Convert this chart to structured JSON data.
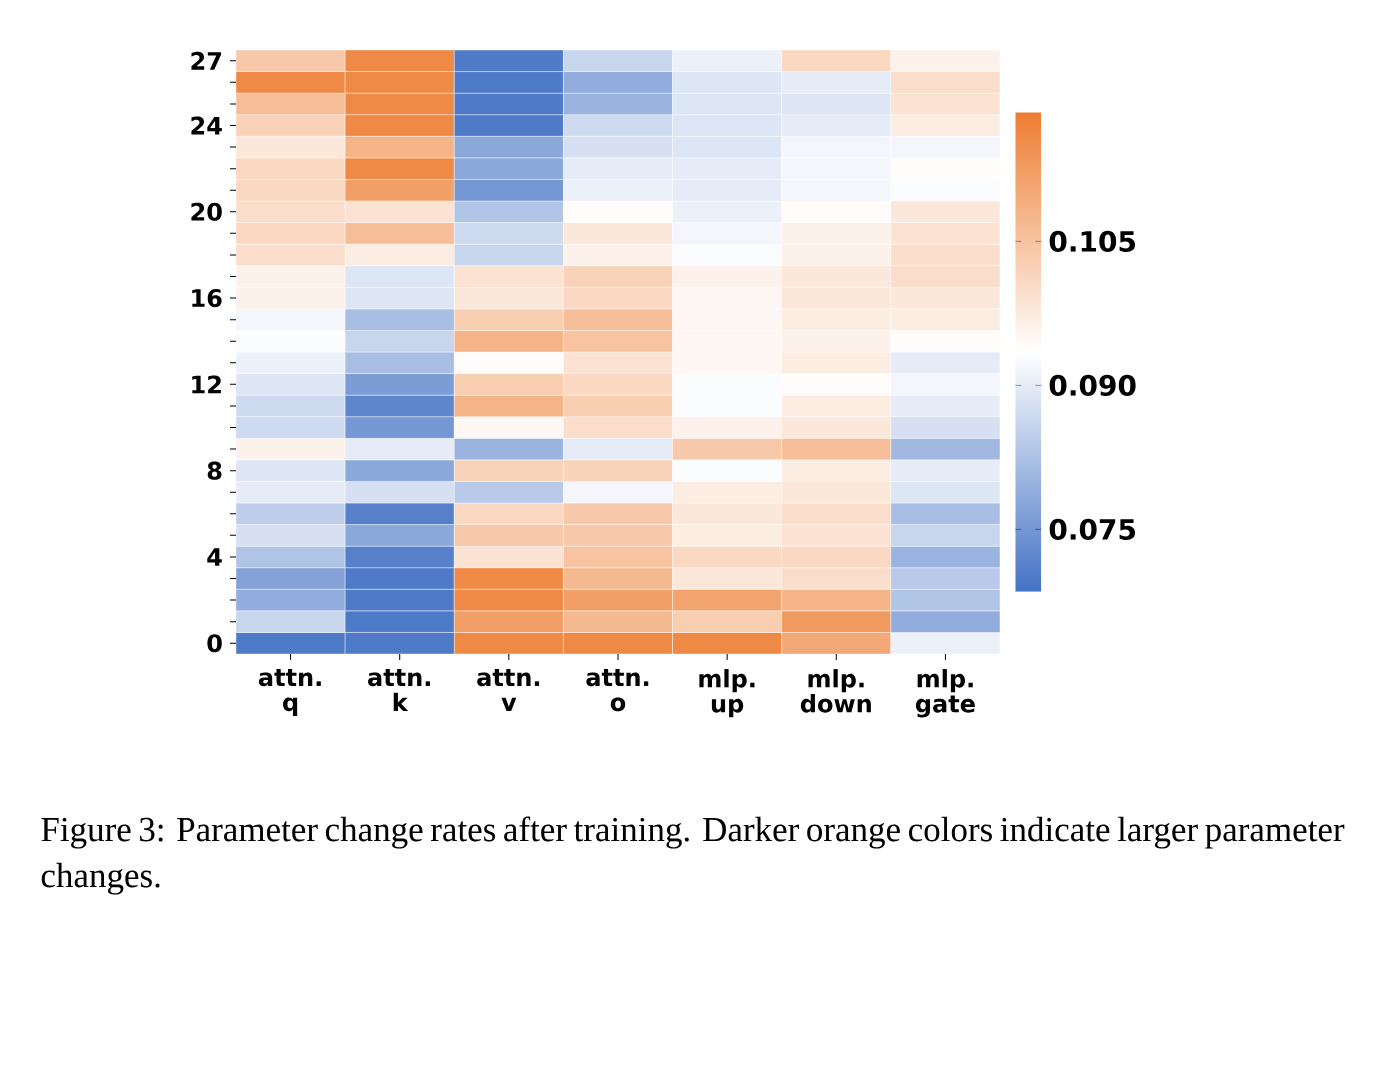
{
  "chart_data": {
    "type": "heatmap",
    "categories": [
      "attn. q",
      "attn. k",
      "attn. v",
      "attn. o",
      "mlp. up",
      "mlp. down",
      "mlp. gate"
    ],
    "y_categories": [
      "27",
      null,
      null,
      "24",
      null,
      null,
      null,
      "20",
      null,
      null,
      null,
      "16",
      null,
      null,
      null,
      "12",
      null,
      null,
      null,
      "8",
      null,
      null,
      null,
      "4",
      null,
      null,
      null,
      "0"
    ],
    "cells": [
      [
        0.104,
        0.116,
        0.07,
        0.086,
        0.091,
        0.101,
        0.096
      ],
      [
        0.116,
        0.116,
        0.07,
        0.079,
        0.089,
        0.09,
        0.1
      ],
      [
        0.106,
        0.116,
        0.07,
        0.08,
        0.089,
        0.089,
        0.099
      ],
      [
        0.102,
        0.116,
        0.07,
        0.087,
        0.089,
        0.09,
        0.097
      ],
      [
        0.098,
        0.108,
        0.078,
        0.088,
        0.089,
        0.092,
        0.092
      ],
      [
        0.101,
        0.116,
        0.078,
        0.09,
        0.09,
        0.092,
        0.094
      ],
      [
        0.101,
        0.112,
        0.075,
        0.091,
        0.09,
        0.092,
        0.093
      ],
      [
        0.1,
        0.099,
        0.083,
        0.094,
        0.091,
        0.094,
        0.098
      ],
      [
        0.101,
        0.106,
        0.087,
        0.098,
        0.092,
        0.096,
        0.099
      ],
      [
        0.1,
        0.097,
        0.086,
        0.096,
        0.093,
        0.096,
        0.1
      ],
      [
        0.096,
        0.089,
        0.099,
        0.102,
        0.096,
        0.098,
        0.1
      ],
      [
        0.096,
        0.089,
        0.098,
        0.101,
        0.095,
        0.098,
        0.098
      ],
      [
        0.092,
        0.082,
        0.103,
        0.106,
        0.095,
        0.097,
        0.097
      ],
      [
        0.093,
        0.086,
        0.108,
        0.105,
        0.095,
        0.096,
        0.094
      ],
      [
        0.091,
        0.082,
        0.094,
        0.099,
        0.095,
        0.097,
        0.09
      ],
      [
        0.089,
        0.076,
        0.103,
        0.101,
        0.093,
        0.094,
        0.092
      ],
      [
        0.087,
        0.072,
        0.108,
        0.103,
        0.093,
        0.097,
        0.09
      ],
      [
        0.087,
        0.075,
        0.095,
        0.1,
        0.096,
        0.098,
        0.088
      ],
      [
        0.096,
        0.09,
        0.08,
        0.09,
        0.104,
        0.106,
        0.081
      ],
      [
        0.089,
        0.078,
        0.102,
        0.102,
        0.093,
        0.097,
        0.09
      ],
      [
        0.09,
        0.088,
        0.084,
        0.092,
        0.097,
        0.098,
        0.089
      ],
      [
        0.085,
        0.071,
        0.101,
        0.104,
        0.098,
        0.1,
        0.082
      ],
      [
        0.088,
        0.078,
        0.104,
        0.104,
        0.097,
        0.099,
        0.086
      ],
      [
        0.083,
        0.071,
        0.099,
        0.105,
        0.101,
        0.101,
        0.08
      ],
      [
        0.077,
        0.07,
        0.116,
        0.107,
        0.098,
        0.1,
        0.084
      ],
      [
        0.079,
        0.07,
        0.116,
        0.112,
        0.111,
        0.108,
        0.083
      ],
      [
        0.086,
        0.07,
        0.112,
        0.107,
        0.103,
        0.113,
        0.079
      ],
      [
        0.07,
        0.07,
        0.116,
        0.116,
        0.116,
        0.11,
        0.091
      ]
    ],
    "colors": [
      "#4472c4",
      "#ffffff",
      "#ed7d31"
    ],
    "clim": [
      0.0685,
      0.1185
    ],
    "cticks": [
      {
        "value": 0.075,
        "label": "0.075"
      },
      {
        "value": 0.09,
        "label": "0.090"
      },
      {
        "value": 0.105,
        "label": "0.105"
      }
    ],
    "annotations": [
      "Figure 3: Parameter change rates after training. Darker orange colors indicate larger parameter changes."
    ]
  }
}
